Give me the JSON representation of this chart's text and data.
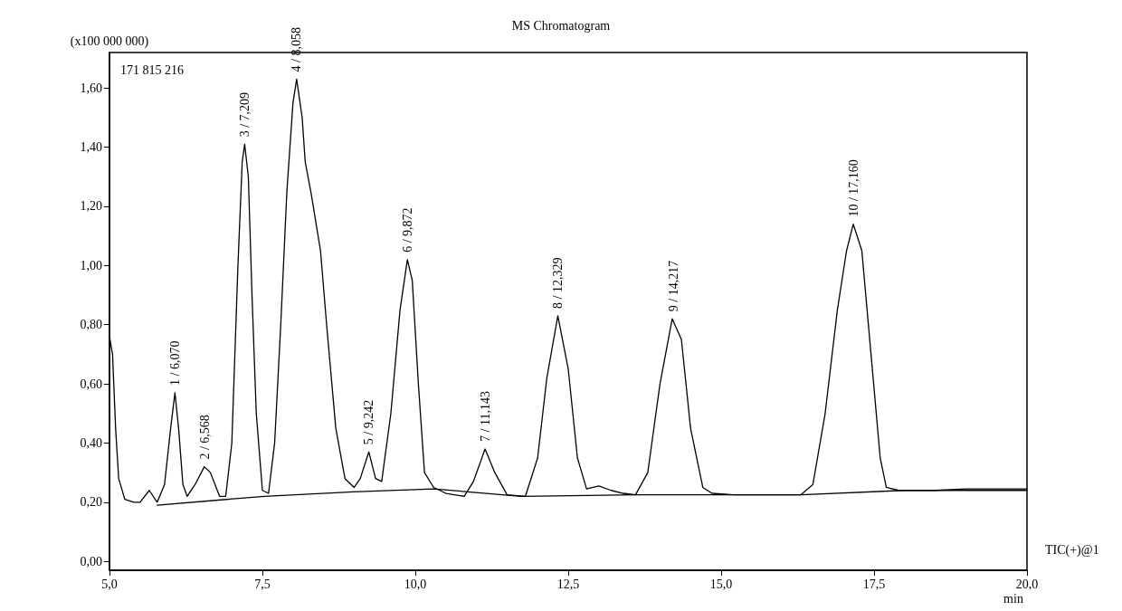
{
  "chart_data": {
    "type": "line",
    "title": "MS Chromatogram",
    "xlabel": "min",
    "ylabel": "(x100 000 000)",
    "xlim": [
      5,
      20
    ],
    "ylim": [
      -0.03,
      1.72
    ],
    "xticks": [
      {
        "value": 5,
        "label": "5,0"
      },
      {
        "value": 7.5,
        "label": "7,5"
      },
      {
        "value": 10,
        "label": "10,0"
      },
      {
        "value": 12.5,
        "label": "12,5"
      },
      {
        "value": 15,
        "label": "15,0"
      },
      {
        "value": 17.5,
        "label": "17,5"
      },
      {
        "value": 20,
        "label": "20,0"
      }
    ],
    "yticks": [
      {
        "value": 0,
        "label": "0,00"
      },
      {
        "value": 0.2,
        "label": "0,20"
      },
      {
        "value": 0.4,
        "label": "0,40"
      },
      {
        "value": 0.6,
        "label": "0,60"
      },
      {
        "value": 0.8,
        "label": "0,80"
      },
      {
        "value": 1.0,
        "label": "1,00"
      },
      {
        "value": 1.2,
        "label": "1,20"
      },
      {
        "value": 1.4,
        "label": "1,40"
      },
      {
        "value": 1.6,
        "label": "1,60"
      }
    ],
    "grid": false,
    "marker": "none",
    "line_style": "solid",
    "series": [
      {
        "color": "#000000",
        "x": [
          5.0,
          5.05,
          5.1,
          5.15,
          5.25,
          5.4,
          5.5,
          5.65,
          5.78,
          5.9,
          6.0,
          6.07,
          6.13,
          6.2,
          6.27,
          6.4,
          6.55,
          6.65,
          6.8,
          6.9,
          7.0,
          7.1,
          7.17,
          7.21,
          7.27,
          7.33,
          7.4,
          7.5,
          7.6,
          7.7,
          7.8,
          7.9,
          8.0,
          8.06,
          8.15,
          8.2,
          8.3,
          8.45,
          8.55,
          8.7,
          8.85,
          9.0,
          9.1,
          9.24,
          9.35,
          9.45,
          9.6,
          9.75,
          9.87,
          9.95,
          10.05,
          10.15,
          10.3,
          10.5,
          10.8,
          10.95,
          11.14,
          11.3,
          11.5,
          11.8,
          12.0,
          12.15,
          12.33,
          12.5,
          12.65,
          12.8,
          13.0,
          13.2,
          13.4,
          13.6,
          13.8,
          14.0,
          14.2,
          14.35,
          14.5,
          14.7,
          14.85,
          15.2,
          15.8,
          16.3,
          16.5,
          16.7,
          16.9,
          17.05,
          17.16,
          17.3,
          17.45,
          17.6,
          17.7,
          17.9,
          18.5,
          19.0,
          19.5,
          20.0
        ],
        "values": [
          0.76,
          0.7,
          0.45,
          0.28,
          0.21,
          0.2,
          0.2,
          0.24,
          0.2,
          0.26,
          0.45,
          0.57,
          0.45,
          0.26,
          0.22,
          0.26,
          0.32,
          0.3,
          0.22,
          0.22,
          0.4,
          1.0,
          1.35,
          1.41,
          1.3,
          0.9,
          0.5,
          0.24,
          0.23,
          0.4,
          0.8,
          1.25,
          1.55,
          1.63,
          1.5,
          1.35,
          1.24,
          1.05,
          0.8,
          0.45,
          0.28,
          0.25,
          0.28,
          0.37,
          0.28,
          0.27,
          0.5,
          0.85,
          1.02,
          0.95,
          0.6,
          0.3,
          0.25,
          0.23,
          0.22,
          0.27,
          0.38,
          0.3,
          0.225,
          0.22,
          0.35,
          0.62,
          0.83,
          0.65,
          0.35,
          0.245,
          0.255,
          0.24,
          0.23,
          0.225,
          0.3,
          0.6,
          0.82,
          0.75,
          0.45,
          0.25,
          0.23,
          0.225,
          0.225,
          0.225,
          0.26,
          0.5,
          0.85,
          1.05,
          1.14,
          1.05,
          0.7,
          0.35,
          0.25,
          0.24,
          0.24,
          0.245,
          0.245,
          0.245
        ]
      },
      {
        "color": "#000000",
        "x": [
          5.78,
          7.53,
          8.98,
          10.3,
          11.73,
          13.6,
          16.3,
          18.0,
          20.0
        ],
        "values": [
          0.19,
          0.22,
          0.235,
          0.245,
          0.22,
          0.225,
          0.225,
          0.24,
          0.24
        ]
      }
    ],
    "annotations": [
      "171 815 216",
      "TIC(+)@1",
      {
        "text": "1 / 6,070",
        "x": 6.07,
        "y": 0.57
      },
      {
        "text": "2 / 6,568",
        "x": 6.568,
        "y": 0.32
      },
      {
        "text": "3 / 7,209",
        "x": 7.209,
        "y": 1.41
      },
      {
        "text": "4 / 8,058",
        "x": 8.058,
        "y": 1.63
      },
      {
        "text": "5 / 9,242",
        "x": 9.242,
        "y": 0.37
      },
      {
        "text": "6 / 9,872",
        "x": 9.872,
        "y": 1.02
      },
      {
        "text": "7 / 11,143",
        "x": 11.143,
        "y": 0.38
      },
      {
        "text": "8 / 12,329",
        "x": 12.329,
        "y": 0.83
      },
      {
        "text": "9 / 14,217",
        "x": 14.217,
        "y": 0.82
      },
      {
        "text": "10 / 17,160",
        "x": 17.16,
        "y": 1.14
      }
    ]
  }
}
